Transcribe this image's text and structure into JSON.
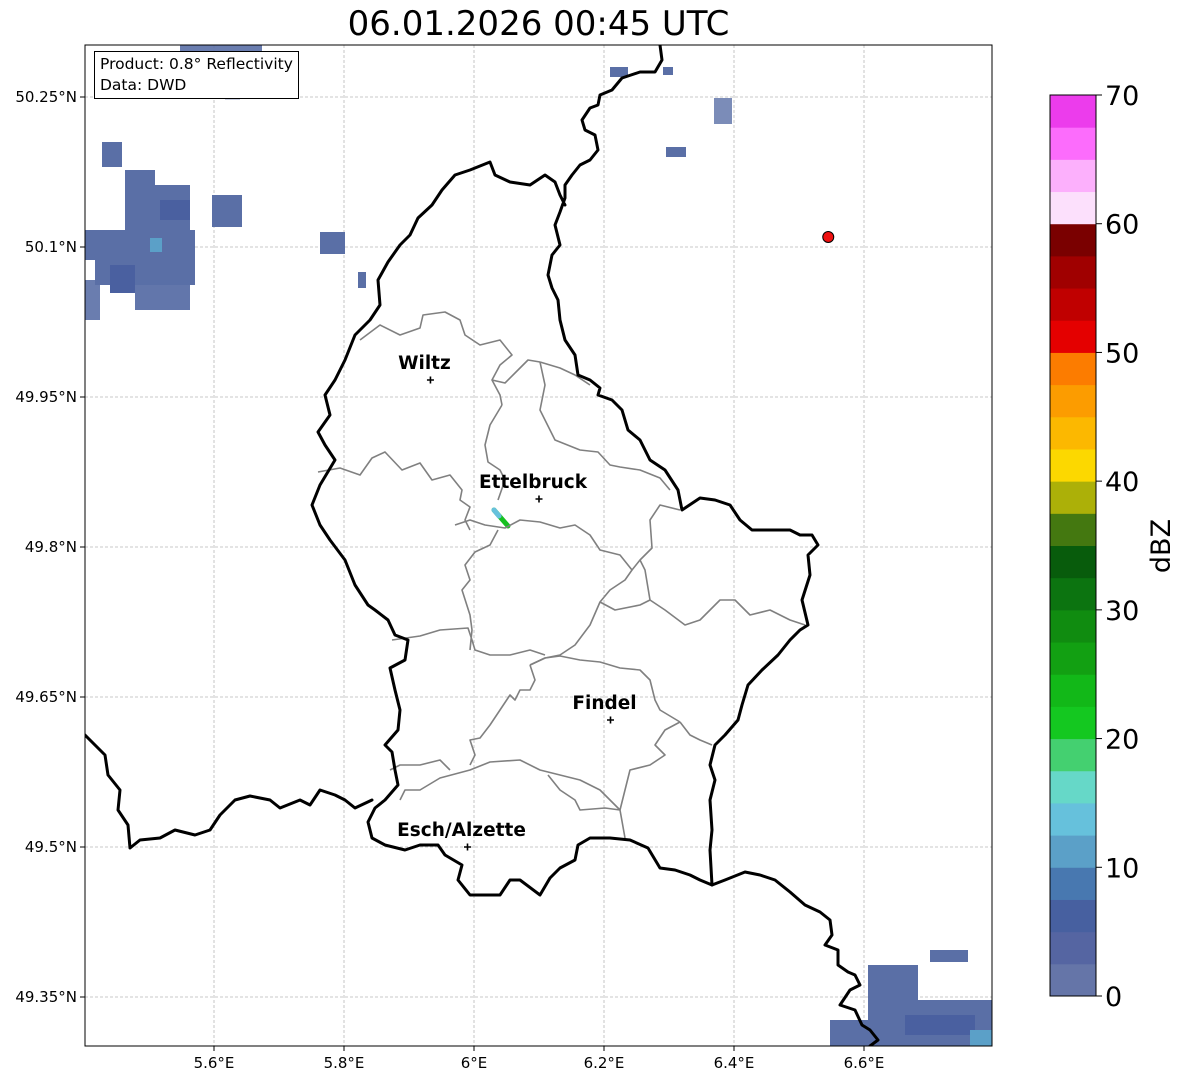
{
  "title": "06.01.2026 00:45 UTC",
  "info": {
    "product": "Product: 0.8° Reflectivity",
    "source": "Data: DWD"
  },
  "axes": {
    "lon_ticks": [
      "5.6°E",
      "5.8°E",
      "6°E",
      "6.2°E",
      "6.4°E",
      "6.6°E"
    ],
    "lat_ticks": [
      "50.25°N",
      "50.1°N",
      "49.95°N",
      "49.8°N",
      "49.65°N",
      "49.5°N",
      "49.35°N"
    ]
  },
  "cities": [
    {
      "name": "Wiltz",
      "lon": 5.933,
      "lat": 49.967
    },
    {
      "name": "Ettelbruck",
      "lon": 6.1,
      "lat": 49.848
    },
    {
      "name": "Findel",
      "lon": 6.21,
      "lat": 49.627
    },
    {
      "name": "Esch/Alzette",
      "lon": 5.99,
      "lat": 49.5
    }
  ],
  "marker": {
    "lon": 6.545,
    "lat": 50.11,
    "color": "#ee1111"
  },
  "colorbar": {
    "label": "dBZ",
    "ticks": [
      "0",
      "10",
      "20",
      "30",
      "40",
      "50",
      "60",
      "70"
    ],
    "colors": [
      "#6575a8",
      "#5565a2",
      "#4760a0",
      "#4878b0",
      "#5ba0c8",
      "#66c1dc",
      "#66d8c8",
      "#44d070",
      "#14c820",
      "#12b818",
      "#12a012",
      "#108c10",
      "#0c7410",
      "#085c0c",
      "#447810",
      "#acb008",
      "#fcd800",
      "#fcb800",
      "#fc9c00",
      "#fc7c00",
      "#e40000",
      "#c00000",
      "#a00000",
      "#7a0000",
      "#fce0fc",
      "#fcb0fc",
      "#fc6cfc",
      "#ec3cec"
    ]
  }
}
